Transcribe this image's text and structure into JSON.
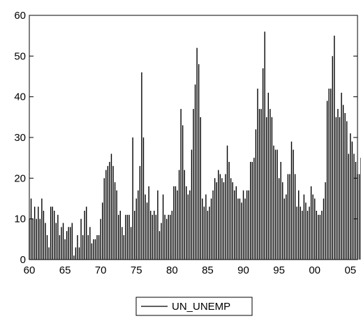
{
  "chart_data": {
    "type": "line",
    "render_style": "spikes",
    "title": "",
    "xlabel": "",
    "ylabel": "",
    "xlim": [
      1960,
      2006
    ],
    "ylim": [
      0,
      60
    ],
    "grid": false,
    "legend_position": "bottom-center",
    "x_tick_labels": [
      "60",
      "65",
      "70",
      "75",
      "80",
      "85",
      "90",
      "95",
      "00",
      "05"
    ],
    "x_tick_values": [
      1960,
      1965,
      1970,
      1975,
      1980,
      1985,
      1990,
      1995,
      2000,
      2005
    ],
    "y_tick_labels": [
      "0",
      "10",
      "20",
      "30",
      "40",
      "50",
      "60"
    ],
    "y_tick_values": [
      0,
      10,
      20,
      30,
      40,
      50,
      60
    ],
    "series": [
      {
        "name": "UN_UNEMP",
        "color": "#000000",
        "x_start": 1960.0,
        "x_step": 0.25,
        "values": [
          10,
          15,
          10,
          13,
          10,
          13,
          10,
          15,
          12,
          9,
          6,
          3,
          13,
          13,
          12,
          9,
          11,
          6,
          8,
          9,
          5,
          7,
          8,
          8,
          9,
          1,
          3,
          6,
          3,
          10,
          6,
          12,
          13,
          6,
          8,
          4,
          5,
          5,
          6,
          6,
          10,
          14,
          20,
          22,
          23,
          24,
          26,
          23,
          19,
          17,
          11,
          12,
          8,
          6,
          11,
          11,
          11,
          8,
          30,
          12,
          15,
          17,
          23,
          46,
          30,
          16,
          14,
          18,
          12,
          11,
          12,
          11,
          17,
          7,
          9,
          16,
          11,
          10,
          11,
          11,
          12,
          18,
          18,
          17,
          22,
          37,
          33,
          22,
          18,
          16,
          17,
          27,
          37,
          43,
          52,
          48,
          35,
          15,
          13,
          16,
          12,
          13,
          15,
          17,
          20,
          19,
          22,
          21,
          20,
          19,
          21,
          28,
          24,
          20,
          19,
          17,
          18,
          15,
          15,
          14,
          17,
          15,
          17,
          17,
          24,
          24,
          25,
          32,
          42,
          37,
          37,
          47,
          56,
          35,
          41,
          37,
          35,
          28,
          27,
          27,
          20,
          24,
          19,
          15,
          16,
          21,
          21,
          29,
          27,
          21,
          13,
          17,
          13,
          12,
          16,
          14,
          12,
          13,
          18,
          16,
          15,
          12,
          11,
          11,
          12,
          15,
          19,
          39,
          42,
          42,
          50,
          55,
          35,
          37,
          35,
          41,
          38,
          36,
          34,
          26,
          31,
          29,
          26,
          24,
          21,
          21,
          25
        ]
      }
    ]
  }
}
